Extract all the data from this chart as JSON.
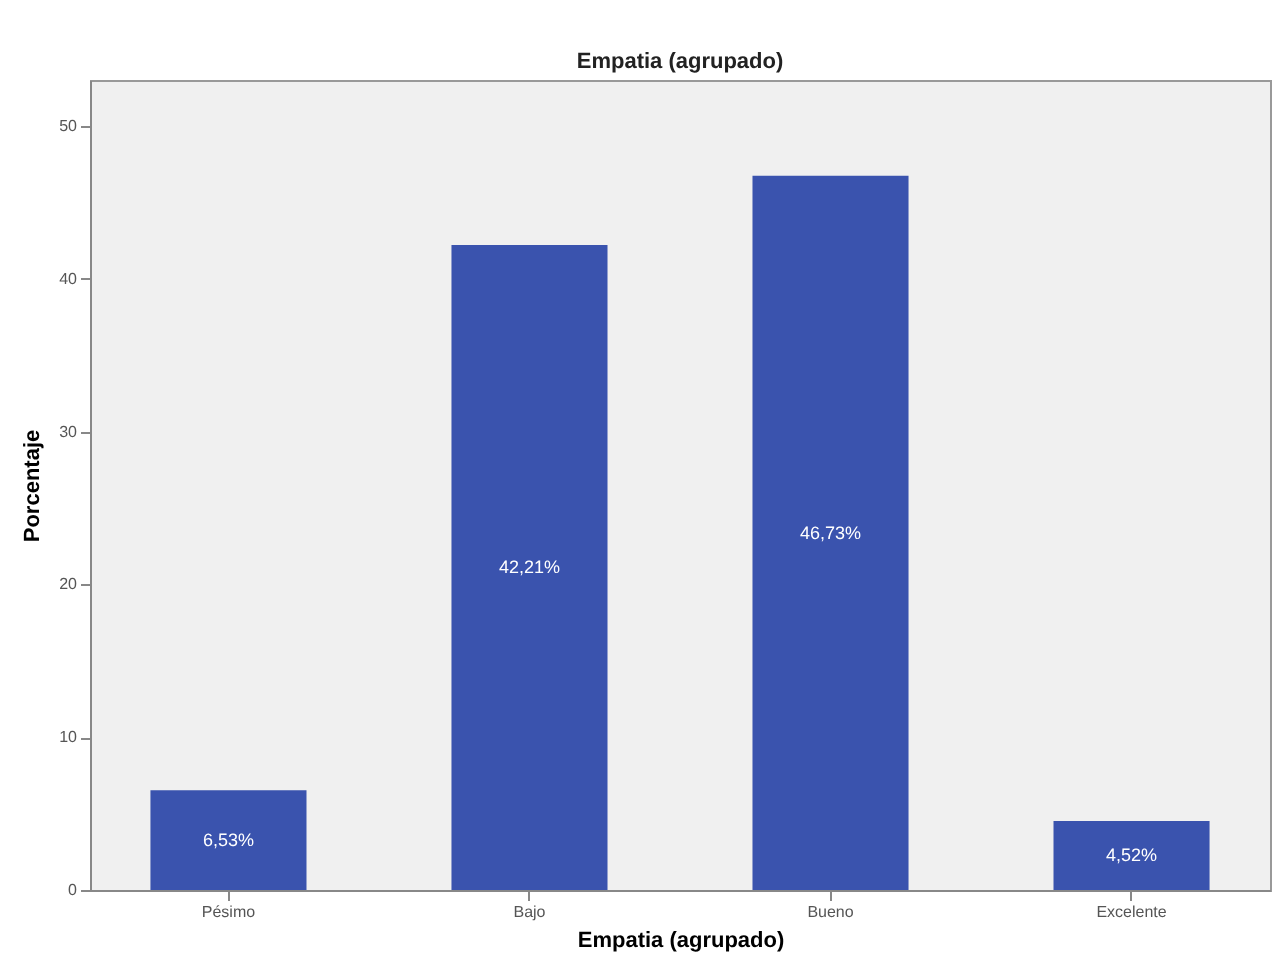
{
  "chart_data": {
    "type": "bar",
    "title": "Empatia  (agrupado)",
    "xlabel": "Empatia  (agrupado)",
    "ylabel": "Porcentaje",
    "categories": [
      "Pésimo",
      "Bajo",
      "Bueno",
      "Excelente"
    ],
    "values": [
      6.53,
      42.21,
      46.73,
      4.52
    ],
    "value_labels": [
      "6,53%",
      "42,21%",
      "46,73%",
      "4,52%"
    ],
    "color": "#3a53ae",
    "ylim": [
      0,
      53
    ],
    "yticks": [
      0,
      10,
      20,
      30,
      40,
      50
    ],
    "grid": false
  }
}
